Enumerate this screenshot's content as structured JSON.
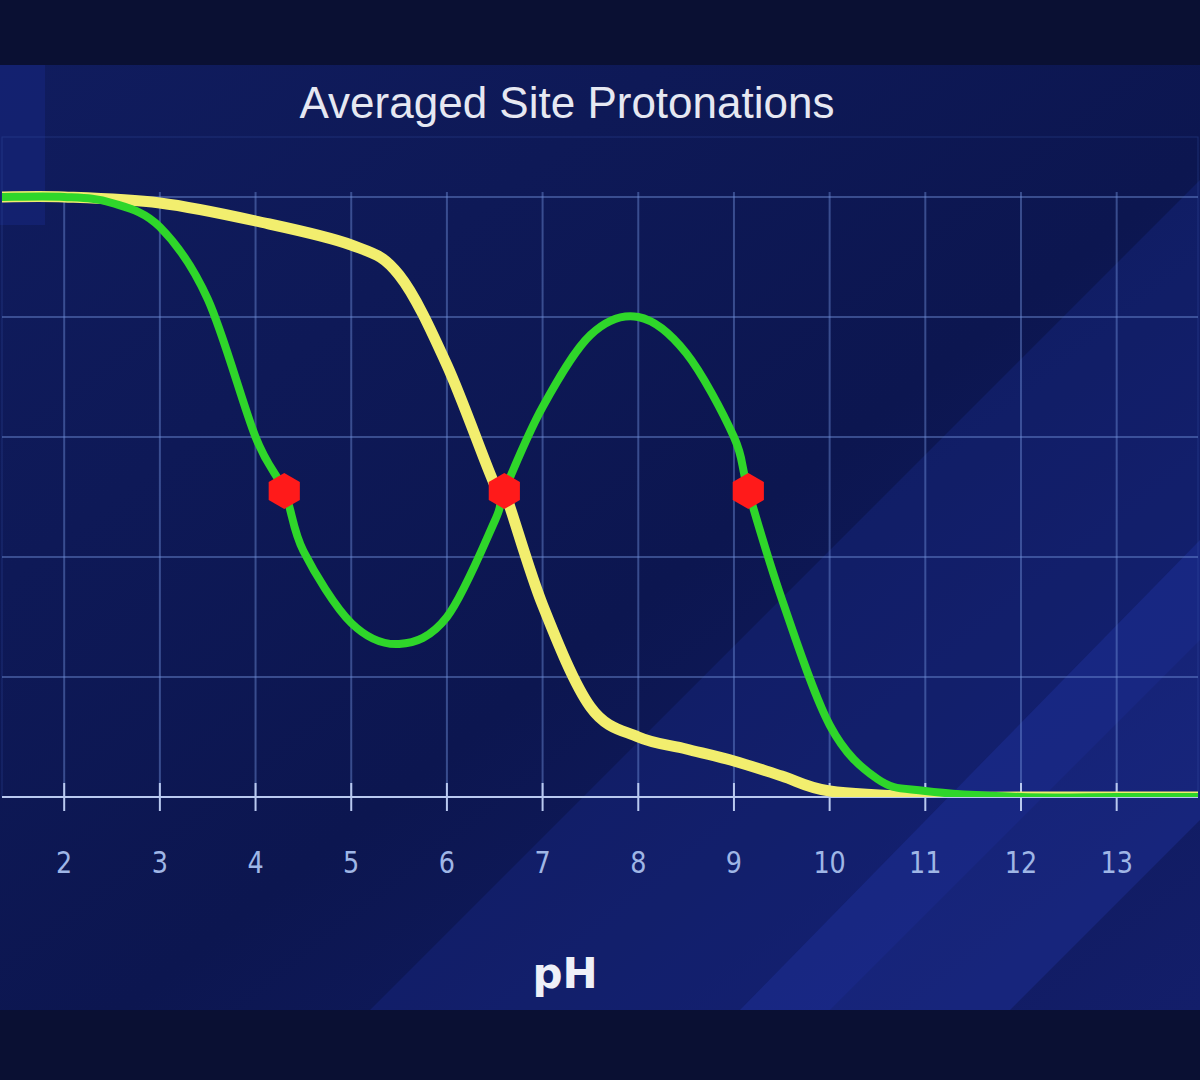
{
  "chart_data": {
    "type": "line",
    "title": "Averaged Site Protonations",
    "x_label": "pH",
    "xlim": [
      1.35,
      13.85
    ],
    "ylim": [
      0,
      1.1
    ],
    "xticks": [
      2,
      3,
      4,
      5,
      6,
      7,
      8,
      9,
      10,
      11,
      12,
      13
    ],
    "yticks": [
      0,
      0.2,
      0.4,
      0.6,
      0.8,
      1
    ],
    "tick_labels": "x",
    "grid": true,
    "series": [
      {
        "type": "line",
        "color": "#f2ee6e",
        "x": [
          1.35,
          2,
          3,
          4,
          5,
          5.5,
          6,
          6.5,
          6.6,
          7,
          7.5,
          8,
          8.5,
          9,
          9.5,
          10,
          11,
          12,
          13.85
        ],
        "values": [
          1,
          1,
          0.99,
          0.96,
          0.92,
          0.87,
          0.72,
          0.52,
          0.51,
          0.32,
          0.15,
          0.1,
          0.08,
          0.06,
          0.035,
          0.01,
          0,
          0,
          0
        ]
      },
      {
        "type": "line",
        "color": "#2fd62a",
        "x": [
          1.35,
          2,
          2.5,
          3,
          3.5,
          4,
          4.3,
          4.5,
          5,
          5.5,
          6,
          6.5,
          6.6,
          7,
          7.5,
          8,
          8.5,
          9,
          9.15,
          9.5,
          10,
          10.5,
          11,
          12,
          13,
          13.85
        ],
        "values": [
          1,
          1,
          0.99,
          0.95,
          0.83,
          0.6,
          0.51,
          0.41,
          0.29,
          0.255,
          0.3,
          0.46,
          0.51,
          0.65,
          0.77,
          0.8,
          0.74,
          0.6,
          0.51,
          0.33,
          0.12,
          0.03,
          0.01,
          0,
          0,
          0
        ]
      },
      {
        "type": "scatter",
        "color": "#ff1a1a",
        "marker": "hexagon",
        "x": [
          4.3,
          6.6,
          9.15
        ],
        "values": [
          0.51,
          0.51,
          0.51
        ]
      }
    ]
  }
}
